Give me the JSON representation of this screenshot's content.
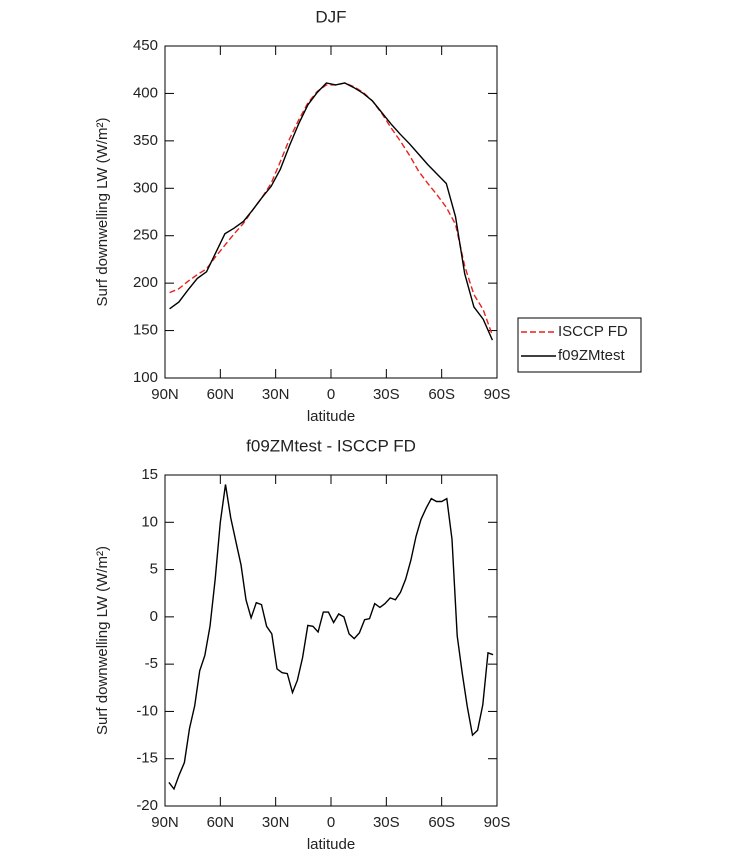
{
  "chart_data": [
    {
      "type": "line",
      "title": "DJF",
      "xlabel": "latitude",
      "ylabel": "Surf downwelling LW (W/m²)",
      "xlim": [
        90,
        -90
      ],
      "xticks": [
        {
          "value": 90,
          "label": "90N"
        },
        {
          "value": 60,
          "label": "60N"
        },
        {
          "value": 30,
          "label": "30N"
        },
        0,
        {
          "value": -30,
          "label": "30S"
        },
        {
          "value": -60,
          "label": "60S"
        },
        {
          "value": -90,
          "label": "90S"
        }
      ],
      "ylim": [
        100,
        450
      ],
      "yticks": [
        100,
        150,
        200,
        250,
        300,
        350,
        400,
        450
      ],
      "legend": "outside-right",
      "x": [
        87.5,
        82.5,
        77.5,
        72.5,
        67.5,
        62.5,
        57.5,
        52.5,
        47.5,
        42.5,
        37.5,
        32.5,
        27.5,
        22.5,
        17.5,
        12.5,
        7.5,
        2.5,
        -2.5,
        -7.5,
        -12.5,
        -17.5,
        -22.5,
        -27.5,
        -32.5,
        -37.5,
        -42.5,
        -47.5,
        -52.5,
        -57.5,
        -62.5,
        -67.5,
        -72.5,
        -77.5,
        -82.5,
        -87.5
      ],
      "series": [
        {
          "name": "ISCCP FD",
          "color": "#e8211c",
          "dash": true,
          "values": [
            190,
            194,
            202,
            209,
            215,
            228,
            240,
            252,
            263,
            277,
            290,
            305,
            328,
            352,
            372,
            390,
            402,
            409,
            409,
            411,
            407,
            401,
            392,
            379,
            364,
            350,
            335,
            318,
            305,
            293,
            280,
            262,
            218,
            188,
            172,
            145
          ]
        },
        {
          "name": "f09ZMtest",
          "color": "#000000",
          "dash": false,
          "values": [
            173,
            180,
            193,
            205,
            212,
            232,
            252,
            258,
            265,
            277,
            290,
            302,
            320,
            345,
            368,
            388,
            401,
            411,
            409,
            411,
            406,
            400,
            392,
            380,
            368,
            357,
            347,
            336,
            325,
            315,
            305,
            270,
            210,
            175,
            162,
            140
          ]
        }
      ]
    },
    {
      "type": "line",
      "title": "f09ZMtest - ISCCP FD",
      "xlabel": "latitude",
      "ylabel": "Surf downwelling LW (W/m²)",
      "xlim": [
        90,
        -90
      ],
      "xticks": [
        {
          "value": 90,
          "label": "90N"
        },
        {
          "value": 60,
          "label": "60N"
        },
        {
          "value": 30,
          "label": "30N"
        },
        0,
        {
          "value": -30,
          "label": "30S"
        },
        {
          "value": -60,
          "label": "60S"
        },
        {
          "value": -90,
          "label": "90S"
        }
      ],
      "ylim": [
        -20,
        15
      ],
      "yticks": [
        -20,
        -15,
        -10,
        -5,
        0,
        5,
        10,
        15
      ],
      "x": [
        87.9,
        85.1,
        82.3,
        79.5,
        76.7,
        73.9,
        71.2,
        68.4,
        65.6,
        62.8,
        60.0,
        57.2,
        54.4,
        51.6,
        48.8,
        46.1,
        43.3,
        40.5,
        37.7,
        34.9,
        32.1,
        29.3,
        26.5,
        23.7,
        20.9,
        18.2,
        15.4,
        12.6,
        9.8,
        7.0,
        4.2,
        1.4,
        -1.4,
        -4.2,
        -7.0,
        -9.8,
        -12.6,
        -15.4,
        -18.2,
        -20.9,
        -23.7,
        -26.5,
        -29.3,
        -32.1,
        -34.9,
        -37.7,
        -40.5,
        -43.3,
        -46.1,
        -48.8,
        -51.6,
        -54.4,
        -57.2,
        -60.0,
        -62.8,
        -65.6,
        -68.4,
        -71.2,
        -73.9,
        -76.7,
        -79.5,
        -82.3,
        -85.1,
        -87.9
      ],
      "series": [
        {
          "name": "f09ZMtest - ISCCP FD",
          "color": "#000000",
          "dash": false,
          "values": [
            -17.5,
            -18.2,
            -16.7,
            -15.4,
            -11.8,
            -9.4,
            -5.7,
            -4.1,
            -1,
            4,
            10,
            14,
            10.5,
            8,
            5.5,
            1.8,
            -0.1,
            1.5,
            1.3,
            -1,
            -1.8,
            -5.5,
            -5.9,
            -6,
            -8,
            -6.7,
            -4.3,
            -0.9,
            -1,
            -1.6,
            0.5,
            0.5,
            -0.6,
            0.3,
            0,
            -1.8,
            -2.3,
            -1.7,
            -0.3,
            -0.2,
            1.4,
            1,
            1.4,
            2,
            1.8,
            2.6,
            4,
            6,
            8.5,
            10.3,
            11.5,
            12.5,
            12.2,
            12.2,
            12.5,
            8.2,
            -2,
            -6,
            -9.5,
            -12.5,
            -12,
            -9.3,
            -3.8,
            -4
          ]
        }
      ]
    }
  ]
}
